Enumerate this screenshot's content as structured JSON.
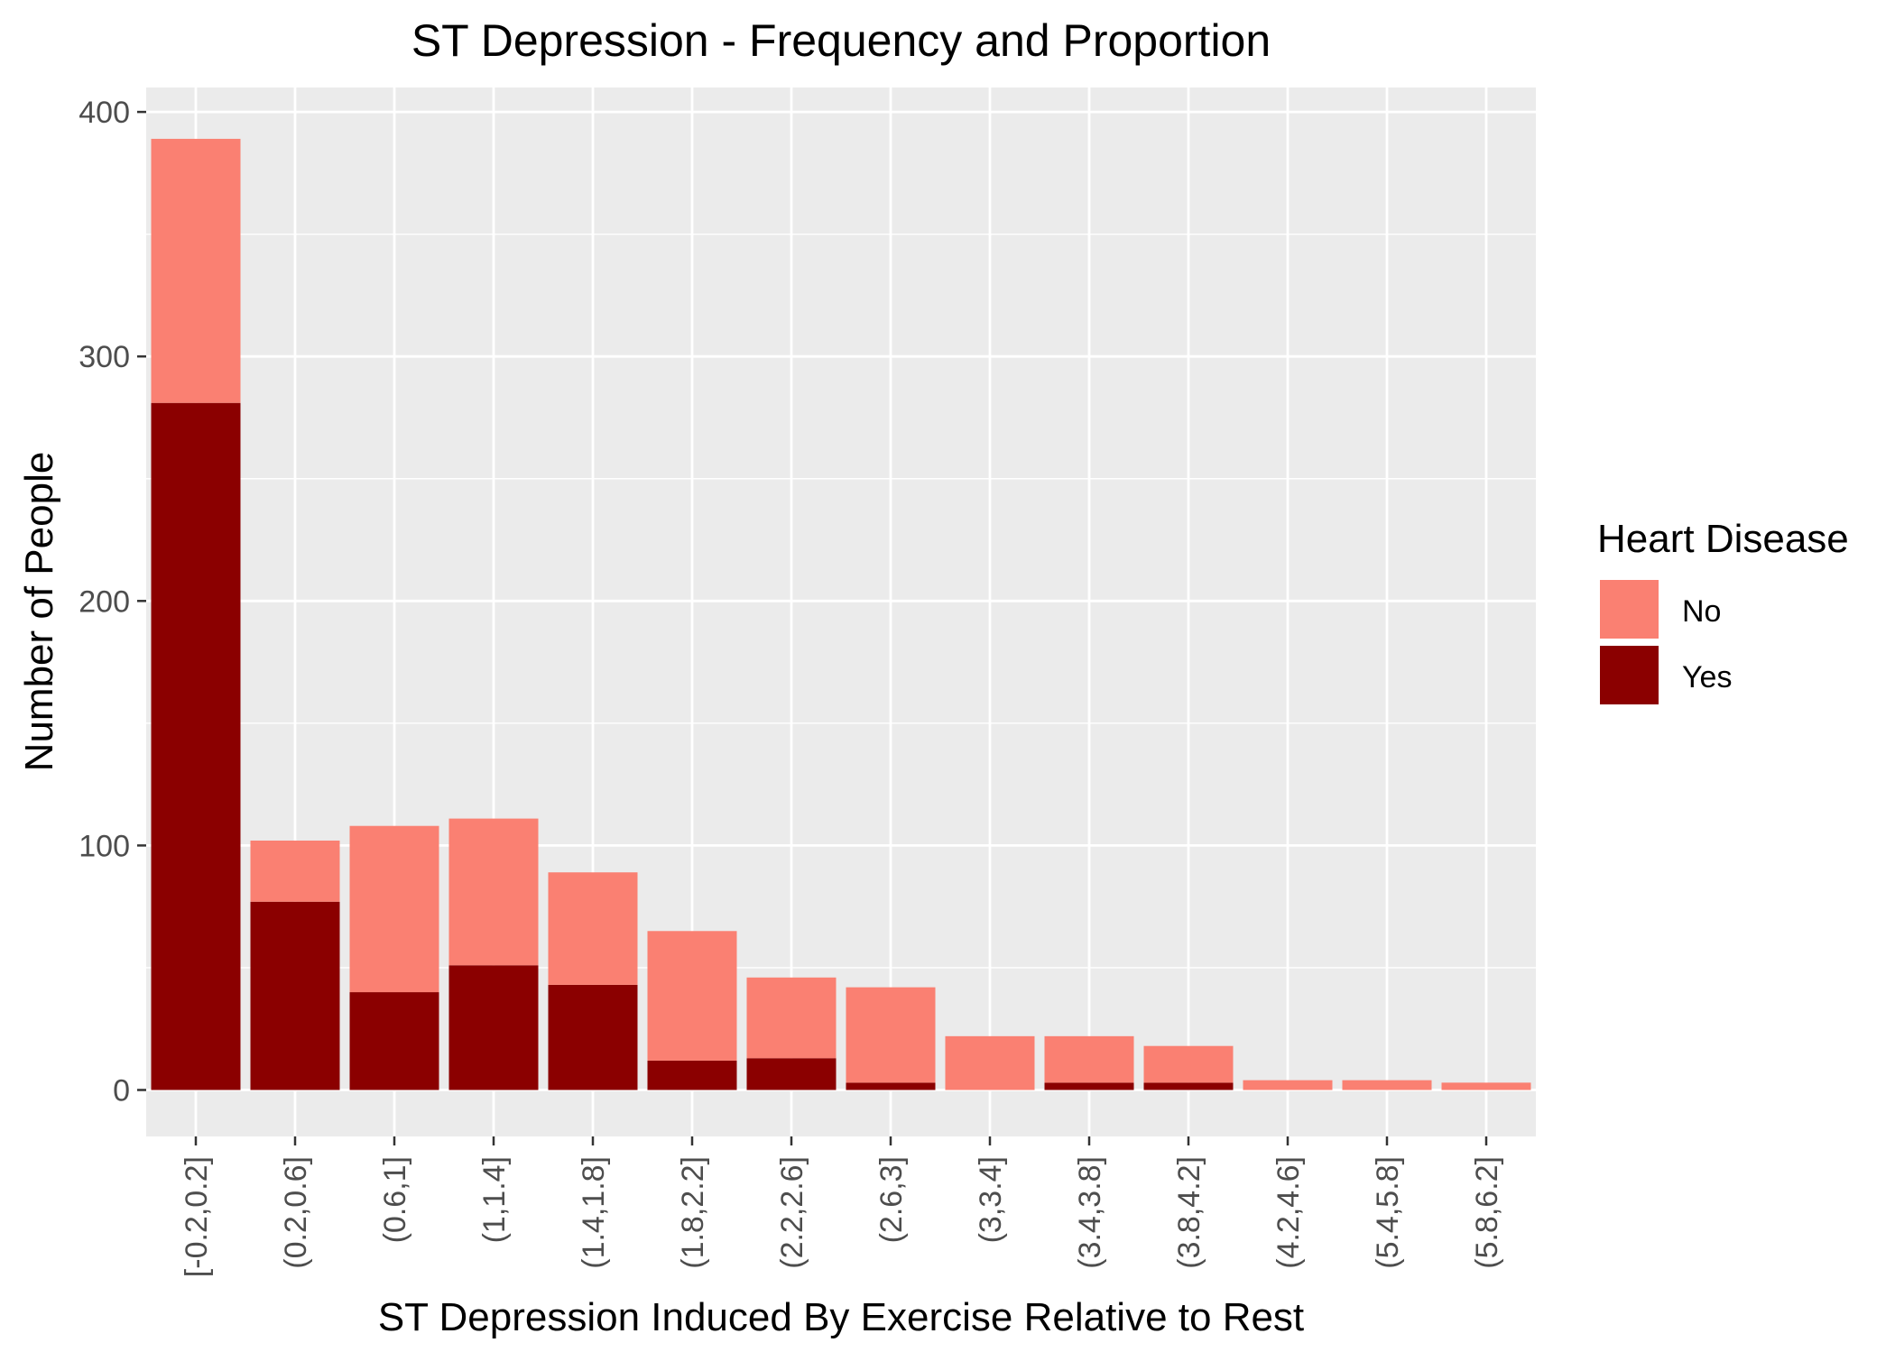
{
  "chart_data": {
    "type": "bar",
    "stacked": true,
    "title": "ST Depression - Frequency and Proportion",
    "xlabel": "ST Depression Induced By Exercise Relative to Rest",
    "ylabel": "Number of People",
    "categories": [
      "[-0.2,0.2]",
      "(0.2,0.6]",
      "(0.6,1]",
      "(1,1.4]",
      "(1.4,1.8]",
      "(1.8,2.2]",
      "(2.2,2.6]",
      "(2.6,3]",
      "(3,3.4]",
      "(3.4,3.8]",
      "(3.8,4.2]",
      "(4.2,4.6]",
      "(5.4,5.8]",
      "(5.8,6.2]"
    ],
    "series": [
      {
        "name": "Yes",
        "color": "#8b0000",
        "values": [
          281,
          77,
          40,
          51,
          43,
          12,
          13,
          3,
          0,
          3,
          3,
          0,
          0,
          0
        ]
      },
      {
        "name": "No",
        "color": "#fa8072",
        "values": [
          108,
          25,
          68,
          60,
          46,
          53,
          33,
          39,
          22,
          19,
          15,
          4,
          4,
          3
        ]
      }
    ],
    "ylim": [
      -19,
      410
    ],
    "yticks": [
      0,
      100,
      200,
      300,
      400
    ],
    "grid": true,
    "legend": {
      "title": "Heart Disease",
      "position": "right",
      "entries": [
        {
          "label": "No",
          "color": "#fa8072"
        },
        {
          "label": "Yes",
          "color": "#8b0000"
        }
      ]
    },
    "panel_background": "#ebebeb"
  }
}
